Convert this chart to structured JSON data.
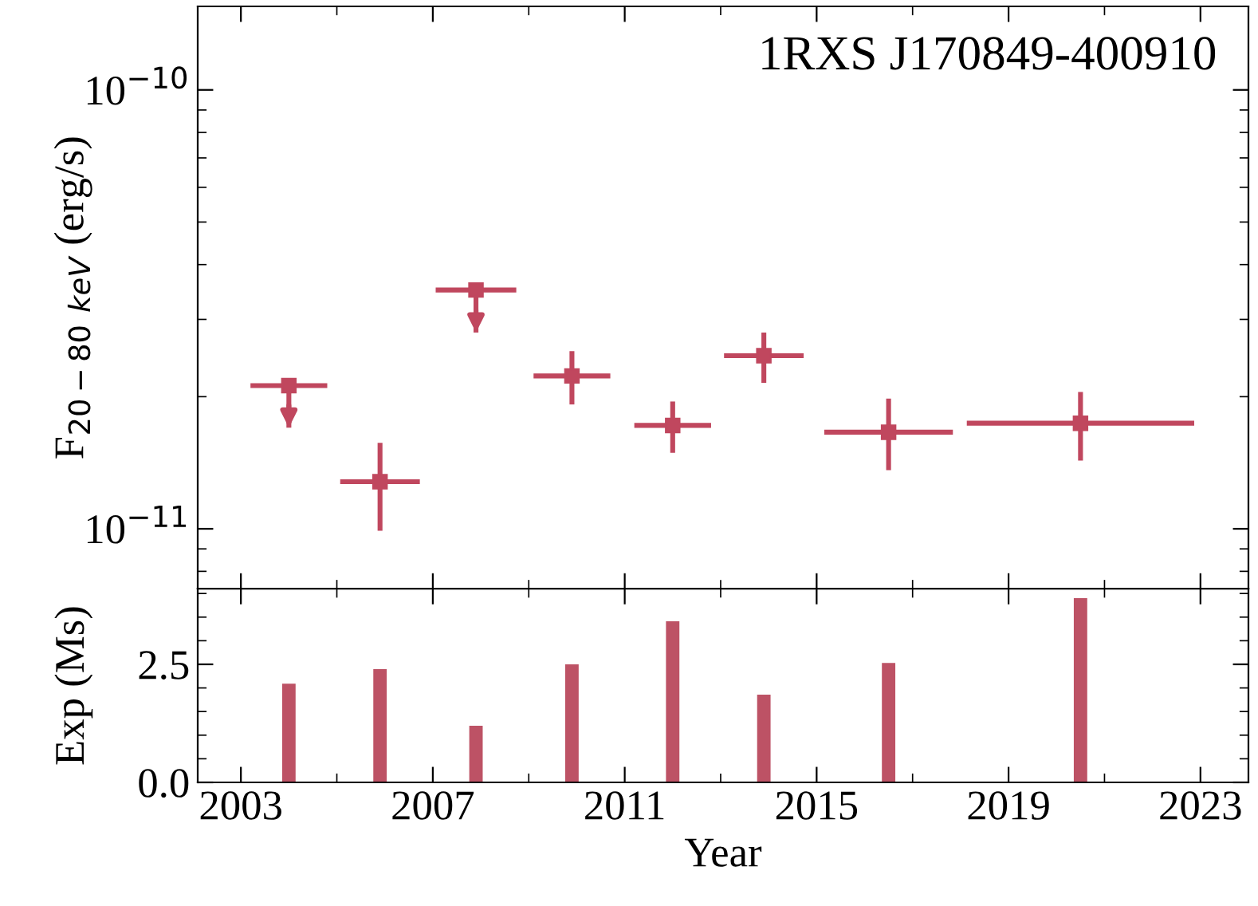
{
  "chart_data": [
    {
      "type": "scatter",
      "annotations": [
        "1RXS J170849-400910"
      ],
      "ylabel": "F$_{20−80}$ $_{keV}$ (erg/s)",
      "log": "y",
      "marker": "square",
      "color": "#c0475e",
      "tick_labels": "y",
      "x": [
        2004.0,
        2005.9,
        2007.9,
        2009.9,
        2012.0,
        2013.9,
        2016.5,
        2020.5
      ],
      "values": [
        2.12e-11,
        1.28e-11,
        3.5e-11,
        2.23e-11,
        1.72e-11,
        2.48e-11,
        1.66e-11,
        1.74e-11
      ],
      "errors": [
        [
          1.7e-11,
          2.12e-11
        ],
        [
          9.9e-12,
          1.57e-11
        ],
        [
          2.8e-11,
          3.5e-11
        ],
        [
          1.92e-11,
          2.54e-11
        ],
        [
          1.49e-11,
          1.95e-11
        ],
        [
          2.15e-11,
          2.8e-11
        ],
        [
          1.36e-11,
          1.98e-11
        ],
        [
          1.43e-11,
          2.05e-11
        ]
      ],
      "xerrors": [
        0.8,
        0.83,
        0.84,
        0.8,
        0.8,
        0.83,
        1.34,
        2.37
      ],
      "xlim": [
        2002.1,
        2024.0
      ],
      "xticks": [
        2003,
        2007,
        2011,
        2015,
        2019,
        2023
      ],
      "ylim": [
        7.3e-12,
        1.55e-10
      ],
      "yticks": [
        {
          "value": 1e-11,
          "label": "10$^{−11}$"
        },
        {
          "value": 1e-10,
          "label": "10$^{−10}$"
        }
      ]
    },
    {
      "type": "bar",
      "xlabel": "Year",
      "ylabel": "Exp (Ms)",
      "color": "#bd5265",
      "x": [
        2004.0,
        2005.9,
        2007.9,
        2009.9,
        2012.0,
        2013.9,
        2016.5,
        2020.5
      ],
      "values": [
        2.09,
        2.4,
        1.2,
        2.5,
        3.41,
        1.86,
        2.53,
        3.9
      ],
      "xlim": [
        2002.1,
        2024.0
      ],
      "xticks": [
        2003,
        2007,
        2011,
        2015,
        2019,
        2023
      ],
      "ylim": [
        0,
        4.1
      ],
      "yticks": [
        {
          "value": 0,
          "label": "0.0"
        },
        {
          "value": 2.5,
          "label": "2.5"
        }
      ]
    }
  ]
}
